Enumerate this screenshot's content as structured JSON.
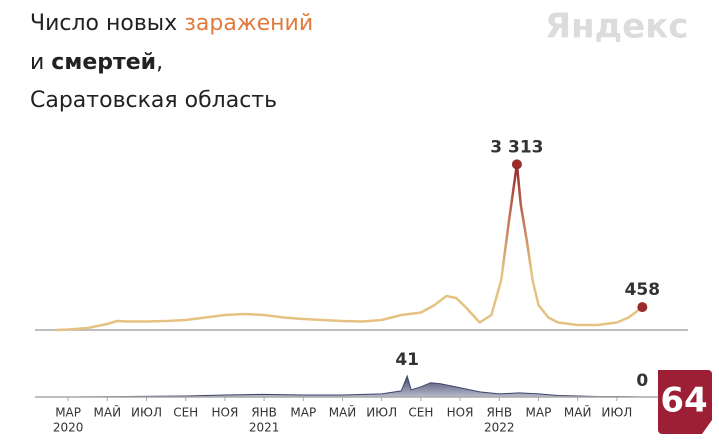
{
  "brand": "Яндекс",
  "badge": "64",
  "chart_data": [
    {
      "type": "line",
      "title_lines": [
        [
          "Число новых ",
          "заражений"
        ],
        [
          "и ",
          "смертей",
          ","
        ],
        [
          "Саратовская область"
        ]
      ],
      "color": "#e6c282",
      "peak_color": "#9a2a2c",
      "x": [
        -0.6,
        0,
        1,
        2,
        2.5,
        3,
        4,
        5,
        6,
        7,
        8,
        9,
        10,
        11,
        12,
        13,
        14,
        15,
        16,
        17,
        18,
        18.7,
        19.3,
        19.8,
        20.3,
        21,
        21.6,
        22.1,
        22.5,
        22.9,
        23.1,
        23.4,
        23.7,
        24,
        24.5,
        25,
        26,
        27,
        28,
        28.6,
        29.3
      ],
      "values": [
        0,
        10,
        40,
        120,
        180,
        170,
        170,
        180,
        200,
        250,
        300,
        320,
        300,
        250,
        220,
        200,
        180,
        170,
        200,
        300,
        350,
        500,
        680,
        640,
        450,
        150,
        300,
        1000,
        2200,
        3313,
        2500,
        1800,
        1000,
        500,
        250,
        150,
        100,
        100,
        150,
        250,
        458
      ],
      "value_labels": [
        null,
        null,
        null,
        null,
        null,
        null,
        null,
        null,
        null,
        null,
        null,
        null,
        null,
        null,
        null,
        null,
        null,
        null,
        null,
        null,
        null,
        null,
        null,
        null,
        null,
        null,
        null,
        null,
        null,
        "3 313",
        null,
        null,
        null,
        null,
        null,
        null,
        null,
        null,
        null,
        null,
        "458"
      ],
      "xlim": [
        -1.69,
        31.63
      ],
      "ylim": [
        0,
        3400
      ]
    },
    {
      "type": "area",
      "color": "#3f4468",
      "x": [
        -0.6,
        0,
        3,
        6,
        8,
        10,
        12,
        14,
        16,
        17,
        17.3,
        17.5,
        18,
        18.5,
        19,
        19.5,
        20,
        21,
        22,
        23,
        24,
        25,
        26,
        27,
        28,
        29.3
      ],
      "values": [
        0,
        0,
        1,
        2,
        4,
        5,
        4,
        4,
        6,
        12,
        41,
        14,
        20,
        28,
        26,
        22,
        18,
        10,
        6,
        8,
        6,
        3,
        2,
        1,
        1,
        0
      ],
      "value_labels": [
        null,
        null,
        null,
        null,
        null,
        null,
        null,
        null,
        null,
        null,
        "41",
        null,
        null,
        null,
        null,
        null,
        null,
        null,
        null,
        null,
        null,
        null,
        null,
        null,
        null,
        "0"
      ],
      "xlim": [
        -1.69,
        31.63
      ],
      "ylim": [
        0,
        45
      ],
      "xticks": [
        {
          "value": 0,
          "label": "МАР"
        },
        {
          "value": 2,
          "label": "МАЙ"
        },
        {
          "value": 4,
          "label": "ИЮЛ"
        },
        {
          "value": 6,
          "label": "СЕН"
        },
        {
          "value": 8,
          "label": "НОЯ"
        },
        {
          "value": 10,
          "label": "ЯНВ"
        },
        {
          "value": 12,
          "label": "МАР"
        },
        {
          "value": 14,
          "label": "МАЙ"
        },
        {
          "value": 16,
          "label": "ИЮЛ"
        },
        {
          "value": 18,
          "label": "СЕН"
        },
        {
          "value": 20,
          "label": "НОЯ"
        },
        {
          "value": 22,
          "label": "ЯНВ"
        },
        {
          "value": 24,
          "label": "МАР"
        },
        {
          "value": 26,
          "label": "МАЙ"
        },
        {
          "value": 28,
          "label": "ИЮЛ"
        }
      ],
      "xtick_years": [
        {
          "value": 0,
          "label": "2020"
        },
        {
          "value": 10,
          "label": "2021"
        },
        {
          "value": 22,
          "label": "2022"
        }
      ]
    }
  ]
}
